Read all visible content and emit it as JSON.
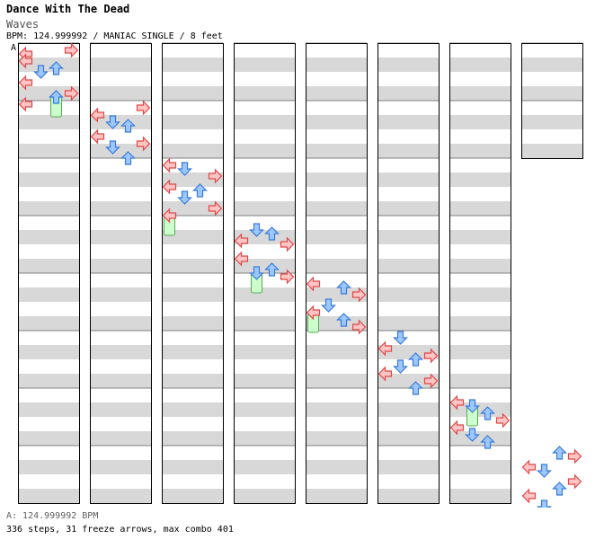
{
  "song": {
    "title": "Dance With The Dead",
    "artist": "Waves",
    "info": "BPM: 124.999992 / MANIAC SINGLE / 8 feet",
    "first_measure_label": "A"
  },
  "footer": {
    "bpm_note": "A: 124.999992 BPM",
    "stats": "336 steps, 31 freeze arrows, max combo 401"
  },
  "colors": {
    "red_fill": "#ffc4c4",
    "red_edge": "#e04848",
    "blue_fill": "#9cc8ff",
    "blue_edge": "#3a7ad8",
    "freeze_fill": "#ccffcc",
    "freeze_edge": "#55a855",
    "stripe": "#d8d8d8",
    "border": "#000000"
  },
  "panel_count": 8,
  "measures_per_panel": 8,
  "total_measures": 58,
  "steps": [
    [
      [
        0,
        1,
        "L",
        0
      ],
      [
        0,
        0,
        "R",
        0
      ],
      [
        0,
        3,
        "L",
        0
      ],
      [
        0,
        5,
        "U",
        0
      ],
      [
        0,
        6,
        "D",
        0
      ],
      [
        0,
        9,
        "L",
        0
      ],
      [
        0,
        13,
        "U",
        1
      ],
      [
        0,
        12,
        "R",
        0
      ],
      [
        0,
        15,
        "L",
        0
      ]
    ],
    [
      [
        1,
        2,
        "L",
        0
      ],
      [
        1,
        0,
        "R",
        0
      ],
      [
        1,
        5,
        "U",
        0
      ],
      [
        1,
        4,
        "D",
        0
      ],
      [
        1,
        8,
        "L",
        0
      ],
      [
        1,
        11,
        "D",
        0
      ],
      [
        1,
        10,
        "R",
        0
      ],
      [
        1,
        14,
        "U",
        0
      ]
    ],
    [
      [
        2,
        0,
        "L",
        0
      ],
      [
        2,
        1,
        "D",
        0
      ],
      [
        2,
        3,
        "R",
        0
      ],
      [
        2,
        6,
        "L",
        0
      ],
      [
        2,
        7,
        "U",
        0
      ],
      [
        2,
        9,
        "D",
        0
      ],
      [
        2,
        12,
        "R",
        0
      ],
      [
        2,
        14,
        "L",
        1
      ]
    ],
    [
      [
        3,
        2,
        "D",
        0
      ],
      [
        3,
        3,
        "U",
        0
      ],
      [
        3,
        5,
        "L",
        0
      ],
      [
        3,
        6,
        "R",
        0
      ],
      [
        3,
        10,
        "L",
        0
      ],
      [
        3,
        13,
        "U",
        0
      ],
      [
        3,
        14,
        "D",
        1
      ],
      [
        3,
        15,
        "R",
        0
      ]
    ],
    [
      [
        4,
        1,
        "L",
        0
      ],
      [
        4,
        2,
        "U",
        0
      ],
      [
        4,
        4,
        "R",
        0
      ],
      [
        4,
        7,
        "D",
        0
      ],
      [
        4,
        9,
        "L",
        1
      ],
      [
        4,
        11,
        "U",
        0
      ],
      [
        4,
        13,
        "R",
        0
      ]
    ],
    [
      [
        5,
        0,
        "D",
        0
      ],
      [
        5,
        3,
        "L",
        0
      ],
      [
        5,
        5,
        "R",
        0
      ],
      [
        5,
        6,
        "U",
        0
      ],
      [
        5,
        8,
        "D",
        0
      ],
      [
        5,
        10,
        "L",
        0
      ],
      [
        5,
        12,
        "R",
        0
      ],
      [
        5,
        14,
        "U",
        0
      ]
    ],
    [
      [
        6,
        2,
        "L",
        0
      ],
      [
        6,
        3,
        "D",
        1
      ],
      [
        6,
        5,
        "U",
        0
      ],
      [
        6,
        7,
        "R",
        0
      ],
      [
        6,
        9,
        "L",
        0
      ],
      [
        6,
        11,
        "D",
        0
      ],
      [
        6,
        13,
        "U",
        0
      ]
    ],
    [
      [
        7,
        0,
        "U",
        0
      ],
      [
        7,
        1,
        "R",
        0
      ],
      [
        7,
        4,
        "L",
        0
      ],
      [
        7,
        5,
        "D",
        0
      ],
      [
        7,
        8,
        "R",
        0
      ],
      [
        7,
        10,
        "U",
        0
      ],
      [
        7,
        12,
        "L",
        0
      ],
      [
        7,
        15,
        "D",
        0
      ]
    ]
  ]
}
